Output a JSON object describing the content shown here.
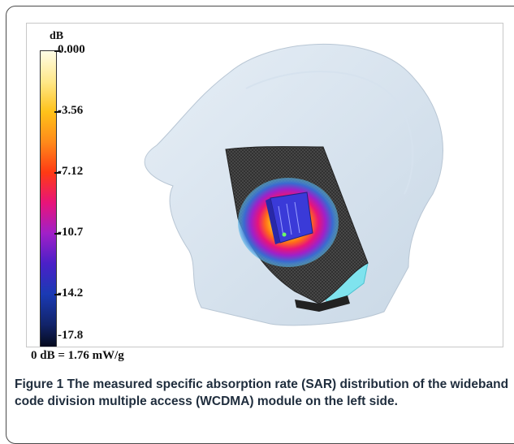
{
  "figure": {
    "colorbar": {
      "unit": "dB",
      "ticks": [
        "0.000",
        "-3.56",
        "-7.12",
        "-10.7",
        "-14.2",
        "-17.8"
      ],
      "colors": [
        "#fffde6",
        "#ffe88a",
        "#ffc21a",
        "#ff8a1a",
        "#ff3a14",
        "#e8147a",
        "#a020c8",
        "#4a20c8",
        "#1a3ab4",
        "#12246a",
        "#000000"
      ]
    },
    "footnote": "0 dB = 1.76 mW/g",
    "caption_label": "Figure 1",
    "caption_text": "The measured specific absorption rate (SAR) distribution of the wideband code division multiple access (WCDMA) module on the left side."
  }
}
